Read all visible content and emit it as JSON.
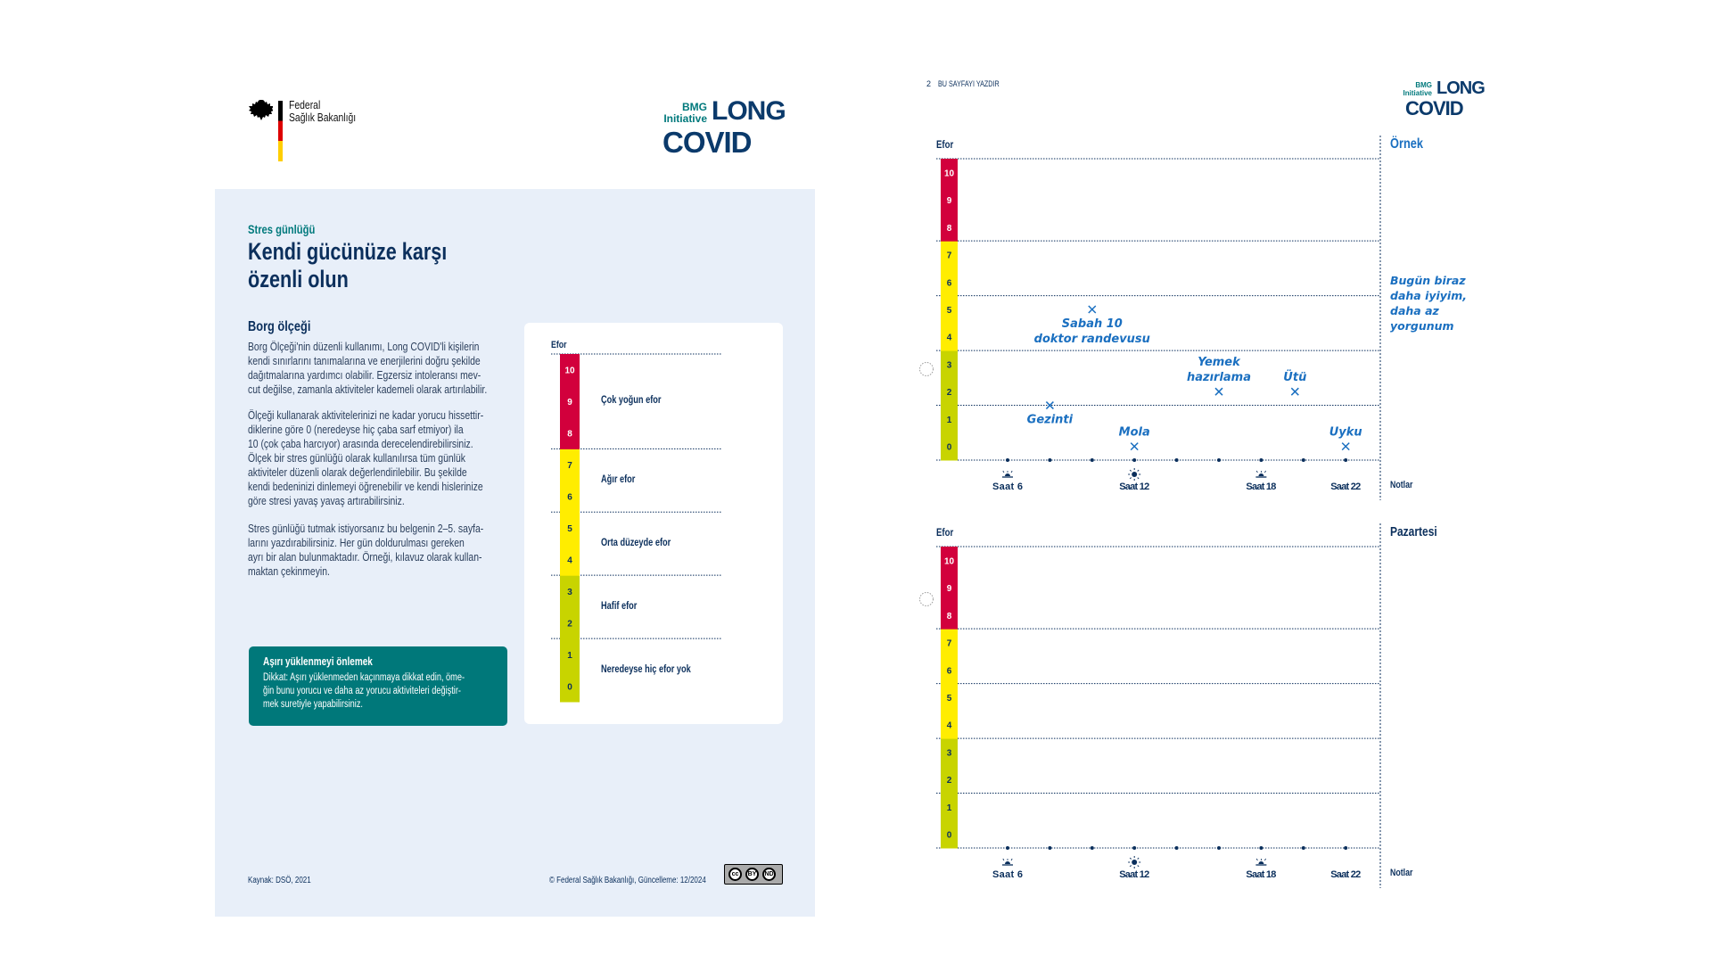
{
  "left_page": {
    "ministry_logo": {
      "line1": "Federal",
      "line2": "Sağlık Bakanlığı"
    },
    "program_logo": {
      "bmg": "BMG",
      "initiative": "Initiative",
      "long": "LONG",
      "covid": "COVID"
    },
    "eyebrow": "Stres günlüğü",
    "title_lines": [
      "Kendi gücünüze karşı",
      "özenli olun"
    ],
    "section_title": "Borg ölçeği",
    "paragraphs": [
      [
        "Borg Ölçeği'nin düzenli kullanımı, Long COVID'li kişilerin",
        "kendi sınırlarını tanımalarına ve enerjilerini doğru şekilde",
        "dağıtmalarına yardımcı olabilir. Egzersiz intoleransı mev-",
        "cut değilse, zamanla aktiviteler kademeli olarak artırılabilir."
      ],
      [
        "Ölçeği kullanarak aktivitelerinizi ne kadar yorucu hissettir-",
        "diklerine göre 0 (neredeyse hiç çaba sarf etmiyor) ila",
        "10 (çok çaba harcıyor) arasında derecelendirebilirsiniz.",
        "Ölçek bir stres günlüğü olarak kullanılırsa tüm günlük",
        "aktiviteler düzenli olarak değerlendirilebilir. Bu şekilde",
        "kendi bedeninizi dinlemeyi öğrenebilir ve kendi hislerinize",
        "göre stresi yavaş yavaş artırabilirsiniz."
      ],
      [
        "Stres günlüğü tutmak istiyorsanız bu belgenin 2–5. sayfa-",
        "larını yazdırabilirsiniz. Her gün doldurulması gereken",
        "ayrı bir alan bulunmaktadır. Örneği, kılavuz olarak kullan-",
        "maktan çekinmeyin."
      ]
    ],
    "borg_scale": {
      "label": "Efor",
      "levels": [
        {
          "label": "Çok yoğun efor",
          "values": [
            10,
            9,
            8
          ]
        },
        {
          "label": "Ağır efor",
          "values": [
            7,
            6
          ]
        },
        {
          "label": "Orta düzeyde efor",
          "values": [
            5,
            4
          ]
        },
        {
          "label": "Hafif efor",
          "values": [
            3,
            2
          ]
        },
        {
          "label": "Neredeyse hiç efor yok",
          "values": [
            1,
            0
          ]
        }
      ]
    },
    "callout": {
      "title": "Aşırı yüklenmeyi önlemek",
      "lines": [
        "Dikkat: Aşırı yüklenmeden kaçınmaya dikkat edin, öme-",
        "ğin bunu yorucu ve daha az yorucu aktiviteleri değiştir-",
        "mek suretiyle yapabilirsiniz."
      ]
    },
    "footer": {
      "source": "Kaynak: DSÖ, 2021",
      "copyright": "© Federal Sağlık Bakanlığı, Güncelleme: 12/2024",
      "license_badge": [
        "cc",
        "BY",
        "ND"
      ]
    }
  },
  "right_page": {
    "page_number": "2",
    "print_label": "BU SAYFAYI YAZDIR",
    "charts": [
      {
        "day_title": "Örnek",
        "y_label": "Efor",
        "notes_label": "Notlar",
        "notes_text": [
          "Bugün biraz",
          "daha iyiyim,",
          "daha az",
          "yorgunum"
        ],
        "marks": [
          {
            "hour": 8,
            "value": 1.5,
            "label": [
              "Gezinti"
            ],
            "label_side": "below"
          },
          {
            "hour": 10,
            "value": 5,
            "label": [
              "Sabah 10",
              "doktor randevusu"
            ],
            "label_side": "below"
          },
          {
            "hour": 12,
            "value": 0,
            "label": [
              "Mola"
            ],
            "label_side": "above"
          },
          {
            "hour": 16,
            "value": 2,
            "label": [
              "Yemek",
              "hazırlama"
            ],
            "label_side": "above"
          },
          {
            "hour": 19.6,
            "value": 2,
            "label": [
              "Ütü"
            ],
            "label_side": "above"
          },
          {
            "hour": 22,
            "value": 0,
            "label": [
              "Uyku"
            ],
            "label_side": "above"
          }
        ]
      },
      {
        "day_title": "Pazartesi",
        "y_label": "Efor",
        "notes_label": "Notlar",
        "notes_text": [],
        "marks": []
      }
    ]
  },
  "chart_data": {
    "type": "scatter",
    "ylabel": "Efor",
    "ylim": [
      0,
      10
    ],
    "y_ticks": [
      0,
      1,
      2,
      3,
      4,
      5,
      6,
      7,
      8,
      9,
      10
    ],
    "x_dot_hours": [
      6,
      8,
      10,
      12,
      14,
      16,
      18,
      20,
      22
    ],
    "x_ticks": [
      {
        "hour": 6,
        "label": "Saat 6",
        "icon": "sunrise-icon"
      },
      {
        "hour": 12,
        "label": "Saat 12",
        "icon": "sun-icon"
      },
      {
        "hour": 18,
        "label": "Saat 18",
        "icon": "sunset-icon"
      },
      {
        "hour": 22,
        "label": "Saat 22",
        "icon": "moon-icon"
      }
    ],
    "bands": [
      {
        "values": [
          8,
          9,
          10
        ],
        "color": "#d2003c"
      },
      {
        "values": [
          4,
          5,
          6,
          7
        ],
        "color": "#ffed00"
      },
      {
        "values": [
          0,
          1,
          2,
          3
        ],
        "color": "#c8d400"
      }
    ],
    "grid": true
  },
  "colors": {
    "navy": "#0b2f5c",
    "teal": "#00787a",
    "red": "#d2003c",
    "yellow": "#ffed00",
    "lime": "#c8d400",
    "panel": "#e8eff9",
    "handwriting": "#1a6fc0"
  }
}
